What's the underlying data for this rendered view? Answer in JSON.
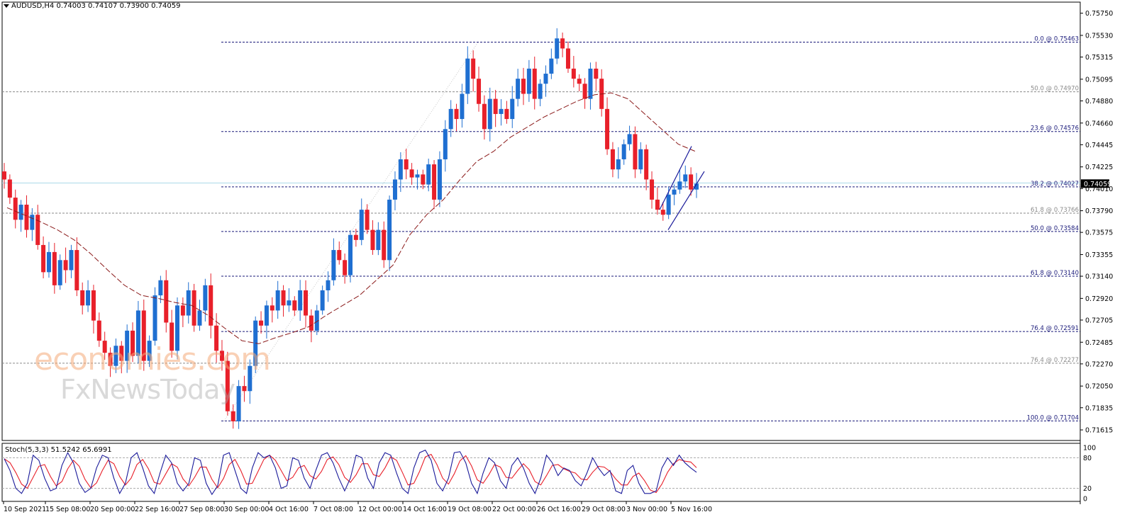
{
  "chart_title": {
    "symbol": "AUDUSD,H4",
    "open": "0.74003",
    "high": "0.74107",
    "low": "0.73900",
    "close": "0.74059"
  },
  "oscillator_title": {
    "name": "Stoch(5,3,3)",
    "main": "51.5242",
    "signal": "65.6991"
  },
  "watermark": {
    "line1": "economies.com",
    "line2": "FxNewsToday"
  },
  "chart_data": {
    "type": "candlestick",
    "instrument": "AUDUSD",
    "timeframe": "H4",
    "ylim": [
      0.7151,
      0.7586
    ],
    "price_ticks": [
      "0.75750",
      "0.75530",
      "0.75315",
      "0.75095",
      "0.74880",
      "0.74660",
      "0.74445",
      "0.74225",
      "0.74010",
      "0.73790",
      "0.73575",
      "0.73355",
      "0.73140",
      "0.72920",
      "0.72705",
      "0.72485",
      "0.72270",
      "0.72050",
      "0.71835",
      "0.71615"
    ],
    "current_price": "0.74059",
    "x_labels": [
      "10 Sep 2021",
      "15 Sep 08:00",
      "20 Sep 00:00",
      "22 Sep 16:00",
      "27 Sep 08:00",
      "30 Sep 00:00",
      "4 Oct 16:00",
      "7 Oct 08:00",
      "12 Oct 00:00",
      "14 Oct 16:00",
      "19 Oct 08:00",
      "22 Oct 00:00",
      "26 Oct 16:00",
      "29 Oct 08:00",
      "3 Nov 00:00",
      "5 Nov 16:00"
    ],
    "fib_levels": [
      {
        "label": "0.0 @ 0.75463",
        "value": 0.75463,
        "color": "#1a1a7a"
      },
      {
        "label": "50.0 @ 0.74970",
        "value": 0.7497,
        "color": "#8a8a8a"
      },
      {
        "label": "23.6 @ 0.74576",
        "value": 0.74576,
        "color": "#1a1a7a"
      },
      {
        "label": "38.2 @ 0.74027",
        "value": 0.74027,
        "color": "#1a1a7a"
      },
      {
        "label": "61.8 @ 0.73766",
        "value": 0.73766,
        "color": "#8a8a8a"
      },
      {
        "label": "50.0 @ 0.73584",
        "value": 0.73584,
        "color": "#1a1a7a"
      },
      {
        "label": "61.8 @ 0.73140",
        "value": 0.7314,
        "color": "#1a1a7a"
      },
      {
        "label": "76.4 @ 0.72591",
        "value": 0.72591,
        "color": "#1a1a7a"
      },
      {
        "label": "76.4 @ 0.72277",
        "value": 0.72277,
        "color": "#8a8a8a"
      },
      {
        "label": "100.0 @ 0.71704",
        "value": 0.71704,
        "color": "#1a1a7a"
      }
    ],
    "horizontal_line": 0.74065,
    "channel": {
      "upper": [
        [
          0.738,
          0.7443
        ]
      ],
      "lower": [
        [
          0.736,
          0.7418
        ]
      ]
    },
    "price_path": [
      0.741,
      0.7392,
      0.737,
      0.7385,
      0.736,
      0.7375,
      0.7345,
      0.7318,
      0.7338,
      0.7305,
      0.733,
      0.732,
      0.734,
      0.73,
      0.7285,
      0.73,
      0.727,
      0.725,
      0.7238,
      0.7225,
      0.7245,
      0.723,
      0.726,
      0.7235,
      0.728,
      0.723,
      0.725,
      0.7295,
      0.731,
      0.7268,
      0.724,
      0.7285,
      0.7275,
      0.73,
      0.7265,
      0.728,
      0.7305,
      0.7265,
      0.724,
      0.723,
      0.718,
      0.717,
      0.7205,
      0.72,
      0.7225,
      0.727,
      0.7265,
      0.7285,
      0.728,
      0.73,
      0.7285,
      0.729,
      0.728,
      0.73,
      0.7275,
      0.726,
      0.728,
      0.73,
      0.731,
      0.734,
      0.733,
      0.7315,
      0.7355,
      0.735,
      0.738,
      0.736,
      0.734,
      0.736,
      0.733,
      0.739,
      0.741,
      0.743,
      0.742,
      0.7412,
      0.7415,
      0.7405,
      0.7425,
      0.739,
      0.743,
      0.746,
      0.748,
      0.747,
      0.7495,
      0.753,
      0.751,
      0.7485,
      0.746,
      0.749,
      0.7475,
      0.748,
      0.747,
      0.749,
      0.751,
      0.7495,
      0.752,
      0.749,
      0.7505,
      0.7515,
      0.753,
      0.755,
      0.754,
      0.752,
      0.751,
      0.7505,
      0.749,
      0.752,
      0.751,
      0.748,
      0.744,
      0.742,
      0.743,
      0.7445,
      0.7455,
      0.742,
      0.744,
      0.741,
      0.739,
      0.738,
      0.7375,
      0.7395,
      0.74,
      0.7408,
      0.7415,
      0.74,
      0.74059
    ],
    "moving_average": [
      0.7382,
      0.7375,
      0.7368,
      0.736,
      0.735,
      0.7336,
      0.732,
      0.7305,
      0.7295,
      0.7292,
      0.7288,
      0.7285,
      0.7275,
      0.7262,
      0.725,
      0.7247,
      0.7253,
      0.7258,
      0.7264,
      0.7275,
      0.7285,
      0.7295,
      0.731,
      0.7325,
      0.7355,
      0.7375,
      0.739,
      0.741,
      0.7428,
      0.7438,
      0.7452,
      0.7462,
      0.7472,
      0.748,
      0.7488,
      0.7494,
      0.7496,
      0.749,
      0.7475,
      0.746,
      0.7445,
      0.7438
    ],
    "stochastic": {
      "name": "Stoch(5,3,3)",
      "main_value": 51.5242,
      "signal_value": 65.6991,
      "levels": [
        80,
        20
      ],
      "ticks": [
        "100",
        "80",
        "20",
        "0"
      ],
      "main": [
        78,
        55,
        20,
        10,
        30,
        85,
        75,
        40,
        15,
        20,
        65,
        90,
        70,
        30,
        12,
        20,
        60,
        85,
        80,
        40,
        10,
        30,
        80,
        90,
        60,
        25,
        10,
        50,
        85,
        70,
        30,
        15,
        30,
        80,
        75,
        30,
        8,
        25,
        85,
        90,
        55,
        20,
        10,
        60,
        90,
        80,
        85,
        60,
        20,
        25,
        80,
        75,
        40,
        20,
        55,
        85,
        90,
        70,
        40,
        15,
        40,
        85,
        80,
        40,
        20,
        70,
        90,
        85,
        50,
        20,
        10,
        60,
        90,
        95,
        75,
        30,
        15,
        40,
        90,
        92,
        70,
        30,
        10,
        50,
        80,
        70,
        35,
        20,
        65,
        80,
        60,
        30,
        10,
        40,
        85,
        70,
        45,
        60,
        55,
        35,
        25,
        50,
        80,
        60,
        45,
        55,
        15,
        10,
        55,
        65,
        30,
        10,
        10,
        15,
        60,
        80,
        65,
        85,
        70,
        60,
        51.5
      ]
    }
  }
}
